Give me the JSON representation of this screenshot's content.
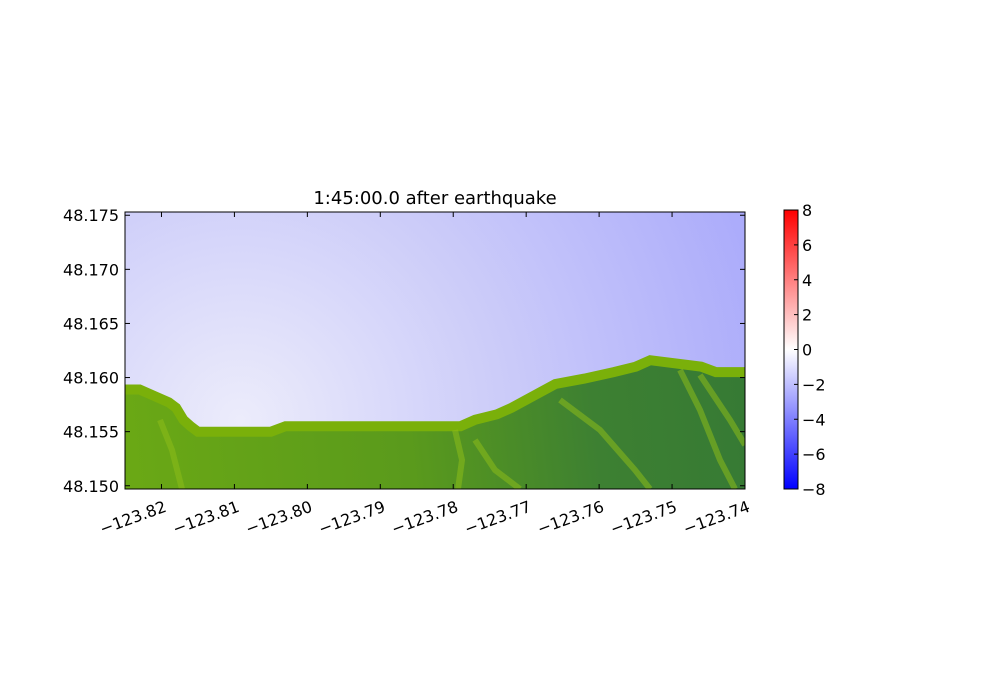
{
  "chart_data": {
    "type": "heatmap",
    "title": "1:45:00.0 after earthquake",
    "xlabel": "",
    "ylabel": "",
    "xlim": [
      -123.825,
      -123.74
    ],
    "ylim": [
      48.1497,
      48.1753
    ],
    "x_ticks": [
      {
        "value": -123.82,
        "label": "−123.82"
      },
      {
        "value": -123.81,
        "label": "−123.81"
      },
      {
        "value": -123.8,
        "label": "−123.80"
      },
      {
        "value": -123.79,
        "label": "−123.79"
      },
      {
        "value": -123.78,
        "label": "−123.78"
      },
      {
        "value": -123.77,
        "label": "−123.77"
      },
      {
        "value": -123.76,
        "label": "−123.76"
      },
      {
        "value": -123.75,
        "label": "−123.75"
      },
      {
        "value": -123.74,
        "label": "−123.74"
      }
    ],
    "y_ticks": [
      {
        "value": 48.15,
        "label": "48.150"
      },
      {
        "value": 48.155,
        "label": "48.155"
      },
      {
        "value": 48.16,
        "label": "48.160"
      },
      {
        "value": 48.165,
        "label": "48.165"
      },
      {
        "value": 48.17,
        "label": "48.170"
      },
      {
        "value": 48.175,
        "label": "48.175"
      }
    ],
    "colorbar": {
      "range": [
        -8,
        8
      ],
      "ticks": [
        {
          "value": 8,
          "label": "8"
        },
        {
          "value": 6,
          "label": "6"
        },
        {
          "value": 4,
          "label": "4"
        },
        {
          "value": 2,
          "label": "2"
        },
        {
          "value": 0,
          "label": "0"
        },
        {
          "value": -2,
          "label": "−2"
        },
        {
          "value": -4,
          "label": "−4"
        },
        {
          "value": -6,
          "label": "−6"
        },
        {
          "value": -8,
          "label": "−8"
        }
      ],
      "colormap": [
        "#0000ff",
        "#ffffff",
        "#ff0000"
      ]
    },
    "water_surface": {
      "min_value_location": [
        -123.74,
        48.175
      ],
      "min_value": -2.6,
      "max_value_location": [
        -123.812,
        48.155
      ],
      "max_value": -0.6
    },
    "shoreline": [
      [
        -123.825,
        48.1589
      ],
      [
        -123.823,
        48.1589
      ],
      [
        -123.821,
        48.1583
      ],
      [
        -123.819,
        48.1577
      ],
      [
        -123.818,
        48.1572
      ],
      [
        -123.817,
        48.1561
      ],
      [
        -123.816,
        48.1555
      ],
      [
        -123.815,
        48.155
      ],
      [
        -123.805,
        48.155
      ],
      [
        -123.803,
        48.1555
      ],
      [
        -123.798,
        48.1555
      ],
      [
        -123.79,
        48.1555
      ],
      [
        -123.782,
        48.1555
      ],
      [
        -123.779,
        48.1555
      ],
      [
        -123.777,
        48.1561
      ],
      [
        -123.774,
        48.1566
      ],
      [
        -123.772,
        48.1572
      ],
      [
        -123.769,
        48.1583
      ],
      [
        -123.766,
        48.1594
      ],
      [
        -123.762,
        48.1599
      ],
      [
        -123.758,
        48.1605
      ],
      [
        -123.755,
        48.161
      ],
      [
        -123.753,
        48.1616
      ],
      [
        -123.746,
        48.161
      ],
      [
        -123.744,
        48.1605
      ],
      [
        -123.74,
        48.1605
      ]
    ],
    "land_colors": {
      "high": "#3a7a30",
      "low": "#7ab00a"
    },
    "grid": false,
    "legend": "none"
  }
}
